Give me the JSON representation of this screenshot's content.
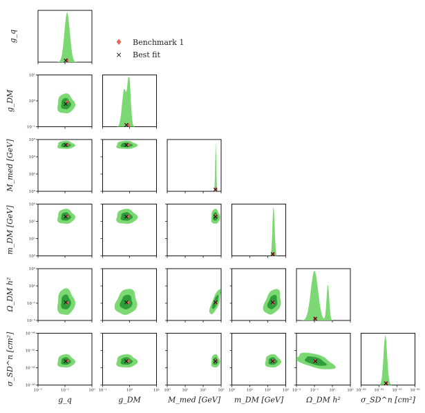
{
  "chart_data": {
    "type": "corner",
    "params": [
      "g_q",
      "g_DM",
      "M_med",
      "m_DM",
      "Omega_DM h^2",
      "sigma_SD^n"
    ],
    "x_axis_labels": [
      "g_q",
      "g_DM",
      "M_med [GeV]",
      "m_DM [GeV]",
      "Ω_DM h²",
      "σ_SD^n [cm²]"
    ],
    "y_axis_labels": [
      "g_q",
      "g_DM",
      "M_med [GeV]",
      "m_DM [GeV]",
      "Ω_DM h²",
      "σ_SD^n [cm²]"
    ],
    "xticks": [
      [
        "10⁻²",
        "10⁻¹",
        "10⁰"
      ],
      [
        "10⁻¹",
        "10⁰",
        "10¹"
      ],
      [
        "10⁰",
        "10¹",
        "10²",
        "10³"
      ],
      [
        "10⁰",
        "10¹",
        "10²",
        "10³"
      ],
      [
        "10⁻³",
        "10⁻¹",
        "10¹",
        "10³"
      ],
      [
        "10⁻⁴³",
        "10⁻⁴²",
        "10⁻⁴¹",
        "10⁻⁴⁰"
      ]
    ],
    "yticks": [
      [],
      [
        "10⁻¹",
        "10⁰",
        "10¹"
      ],
      [
        "10⁰",
        "10¹",
        "10²",
        "10³"
      ],
      [
        "10⁰",
        "10¹",
        "10²",
        "10³"
      ],
      [
        "10⁻³",
        "10⁻¹",
        "10¹",
        "10³"
      ],
      [
        "10⁻⁴³",
        "10⁻⁴²",
        "10⁻⁴¹",
        "10⁻⁴⁰"
      ]
    ],
    "log10_ranges": [
      [
        -2,
        0
      ],
      [
        -1,
        1
      ],
      [
        0,
        3
      ],
      [
        0,
        3
      ],
      [
        -3,
        3
      ],
      [
        -43,
        -40
      ]
    ],
    "benchmark_1_log10": [
      -0.92,
      -0.05,
      2.7,
      2.3,
      -0.95,
      -41.6
    ],
    "best_fit_log10": [
      -0.97,
      -0.12,
      2.68,
      2.27,
      -0.9,
      -41.62
    ],
    "marginal_1d_peaks_log10": [
      [
        [
          -0.92,
          0.1,
          1.0
        ]
      ],
      [
        [
          -0.2,
          0.08,
          0.75
        ],
        [
          -0.02,
          0.06,
          1.0
        ]
      ],
      [
        [
          2.7,
          0.03,
          1.0
        ]
      ],
      [
        [
          2.32,
          0.06,
          1.0
        ]
      ],
      [
        [
          -1.0,
          0.4,
          1.0
        ],
        [
          0.5,
          0.15,
          0.72
        ]
      ],
      [
        [
          -41.65,
          0.1,
          1.0
        ]
      ]
    ],
    "legend": {
      "benchmark_label": "Benchmark 1",
      "bestfit_label": "Best fit",
      "benchmark_color": "#e8625c",
      "bestfit_color": "#111111"
    },
    "contour_colors": {
      "inner": "#2e9e3a",
      "outer": "#7cd872"
    }
  }
}
